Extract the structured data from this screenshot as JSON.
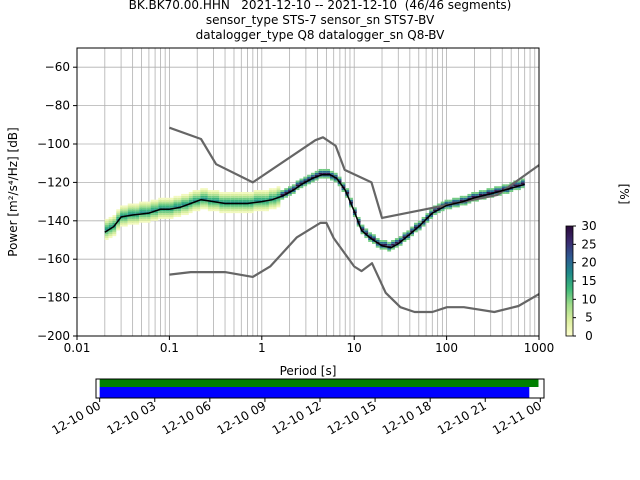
{
  "title_lines": [
    "BK.BK70.00.HHN   2021-12-10 -- 2021-12-10  (46/46 segments)",
    "sensor_type STS-7 sensor_sn STS7-BV",
    "datalogger_type Q8 datalogger_sn Q8-BV"
  ],
  "chart_data": [
    {
      "type": "heatmap",
      "description_role": "probabilistic power spectral density",
      "xlabel": "Period [s]",
      "ylabel": "Power [m²/s⁴/Hz] [dB]",
      "x_scale": "log",
      "xlim": [
        0.01,
        1000
      ],
      "ylim": [
        -200,
        -50
      ],
      "x_ticks": [
        0.01,
        0.1,
        1,
        10,
        100,
        1000
      ],
      "x_tick_labels": [
        "0.01",
        "0.1",
        "1",
        "10",
        "100",
        "1000"
      ],
      "y_ticks": [
        -200,
        -180,
        -160,
        -140,
        -120,
        -100,
        -80,
        -60
      ],
      "y_tick_labels": [
        "−200",
        "−180",
        "−160",
        "−140",
        "−120",
        "−100",
        "−80",
        "−60"
      ],
      "grid": true,
      "colorbar": {
        "label": "[%]",
        "range": [
          0,
          30
        ],
        "ticks": [
          0,
          5,
          10,
          15,
          20,
          25,
          30
        ],
        "tick_labels": [
          "0",
          "5",
          "10",
          "15",
          "20",
          "25",
          "30"
        ],
        "colormap": [
          "#fefecd",
          "#dcefa0",
          "#9fdc8a",
          "#3eb97a",
          "#1f8a8a",
          "#2e5a92",
          "#3a2a6e",
          "#2a0a3a"
        ]
      },
      "mean_curve": {
        "color": "#000000",
        "x": [
          0.02,
          0.025,
          0.03,
          0.04,
          0.06,
          0.08,
          0.1,
          0.13,
          0.17,
          0.22,
          0.3,
          0.4,
          0.5,
          0.7,
          1,
          1.3,
          1.7,
          2.2,
          2.7,
          3.5,
          4.5,
          5.5,
          6.5,
          8,
          10,
          12,
          15,
          20,
          25,
          30,
          40,
          50,
          70,
          100,
          150,
          200,
          300,
          500,
          700
        ],
        "y": [
          -146,
          -143,
          -138,
          -137,
          -136,
          -134,
          -134,
          -133,
          -131,
          -129,
          -130,
          -131,
          -131,
          -131,
          -130,
          -129,
          -127,
          -124,
          -121,
          -118,
          -116,
          -116,
          -118,
          -124,
          -135,
          -145,
          -149,
          -153,
          -154,
          -152,
          -147,
          -143,
          -136,
          -132,
          -130,
          -128,
          -126,
          -123,
          -121
        ]
      },
      "noise_models": [
        {
          "name": "",
          "color": "#666666",
          "x": [
            0.1,
            0.22,
            0.32,
            0.8,
            3.8,
            4.6,
            6.3,
            7.9,
            15.4,
            20,
            354.8,
            1000
          ],
          "y": [
            -91.5,
            -97.4,
            -110.5,
            -120,
            -98,
            -96.5,
            -101,
            -113.5,
            -120,
            -138.5,
            -126.5,
            -111
          ]
        },
        {
          "name": "",
          "color": "#666666",
          "x": [
            0.1,
            0.17,
            0.4,
            0.8,
            1.24,
            2.4,
            4.3,
            5,
            6,
            10,
            12,
            15.6,
            21.9,
            31.6,
            45,
            70,
            101,
            154,
            328,
            600,
            1000
          ],
          "y": [
            -168,
            -166.7,
            -166.7,
            -169.2,
            -163.7,
            -148.6,
            -141.1,
            -141.1,
            -149,
            -163.8,
            -166.2,
            -162.1,
            -177.5,
            -185,
            -187.5,
            -187.5,
            -185,
            -185,
            -187.5,
            -184.4,
            -178.2
          ]
        }
      ]
    },
    {
      "type": "bar",
      "role": "data coverage timeline",
      "x_ticks": [
        "12-10 00",
        "12-10 03",
        "12-10 06",
        "12-10 09",
        "12-10 12",
        "12-10 15",
        "12-10 18",
        "12-10 21",
        "12-11 00"
      ],
      "x_range_hours": [
        -0.2,
        24.2
      ],
      "bars": [
        {
          "name": "green",
          "color": "#008000",
          "start_hour": 0,
          "end_hour": 23.9
        },
        {
          "name": "blue",
          "color": "#0000ff",
          "start_hour": 0,
          "end_hour": 23.4
        }
      ]
    }
  ]
}
